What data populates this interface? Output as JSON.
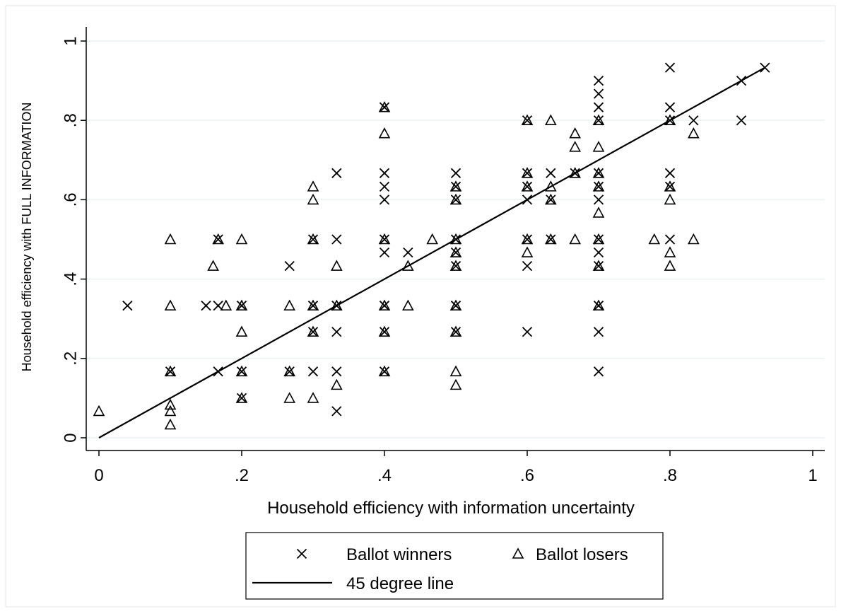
{
  "chart_data": {
    "type": "scatter",
    "xlabel": "Household efficiency with information uncertainty",
    "ylabel": "Household efficiency with FULL INFORMATION",
    "xlim": [
      0,
      1
    ],
    "ylim": [
      0,
      1
    ],
    "x_ticks": [
      0,
      0.2,
      0.4,
      0.6,
      0.8,
      1
    ],
    "x_tick_labels": [
      "0",
      ".2",
      ".4",
      ".6",
      ".8",
      "1"
    ],
    "y_ticks": [
      0,
      0.2,
      0.4,
      0.6,
      0.8,
      1
    ],
    "y_tick_labels": [
      "0",
      ".2",
      ".4",
      ".6",
      ".8",
      "1"
    ],
    "grid": "horizontal",
    "legend_position": "bottom",
    "series": [
      {
        "name": "Ballot winners",
        "marker": "x",
        "points": [
          [
            0.04,
            0.333
          ],
          [
            0.1,
            0.167
          ],
          [
            0.15,
            0.333
          ],
          [
            0.167,
            0.333
          ],
          [
            0.167,
            0.5
          ],
          [
            0.167,
            0.167
          ],
          [
            0.2,
            0.333
          ],
          [
            0.2,
            0.167
          ],
          [
            0.2,
            0.1
          ],
          [
            0.267,
            0.433
          ],
          [
            0.267,
            0.167
          ],
          [
            0.3,
            0.5
          ],
          [
            0.3,
            0.333
          ],
          [
            0.3,
            0.267
          ],
          [
            0.3,
            0.167
          ],
          [
            0.333,
            0.667
          ],
          [
            0.333,
            0.5
          ],
          [
            0.333,
            0.333
          ],
          [
            0.333,
            0.267
          ],
          [
            0.333,
            0.167
          ],
          [
            0.333,
            0.067
          ],
          [
            0.4,
            0.833
          ],
          [
            0.4,
            0.667
          ],
          [
            0.4,
            0.633
          ],
          [
            0.4,
            0.6
          ],
          [
            0.4,
            0.5
          ],
          [
            0.4,
            0.467
          ],
          [
            0.4,
            0.333
          ],
          [
            0.4,
            0.267
          ],
          [
            0.4,
            0.167
          ],
          [
            0.433,
            0.467
          ],
          [
            0.5,
            0.667
          ],
          [
            0.5,
            0.633
          ],
          [
            0.5,
            0.6
          ],
          [
            0.5,
            0.5
          ],
          [
            0.5,
            0.467
          ],
          [
            0.5,
            0.433
          ],
          [
            0.5,
            0.333
          ],
          [
            0.5,
            0.267
          ],
          [
            0.6,
            0.8
          ],
          [
            0.6,
            0.667
          ],
          [
            0.6,
            0.633
          ],
          [
            0.6,
            0.6
          ],
          [
            0.6,
            0.5
          ],
          [
            0.6,
            0.433
          ],
          [
            0.6,
            0.267
          ],
          [
            0.633,
            0.667
          ],
          [
            0.633,
            0.6
          ],
          [
            0.633,
            0.5
          ],
          [
            0.667,
            0.667
          ],
          [
            0.7,
            0.9
          ],
          [
            0.7,
            0.867
          ],
          [
            0.7,
            0.833
          ],
          [
            0.7,
            0.8
          ],
          [
            0.7,
            0.667
          ],
          [
            0.7,
            0.633
          ],
          [
            0.7,
            0.6
          ],
          [
            0.7,
            0.5
          ],
          [
            0.7,
            0.467
          ],
          [
            0.7,
            0.433
          ],
          [
            0.7,
            0.333
          ],
          [
            0.7,
            0.267
          ],
          [
            0.7,
            0.167
          ],
          [
            0.8,
            0.933
          ],
          [
            0.8,
            0.833
          ],
          [
            0.8,
            0.8
          ],
          [
            0.8,
            0.667
          ],
          [
            0.8,
            0.633
          ],
          [
            0.8,
            0.5
          ],
          [
            0.833,
            0.8
          ],
          [
            0.9,
            0.9
          ],
          [
            0.9,
            0.8
          ],
          [
            0.933,
            0.933
          ]
        ]
      },
      {
        "name": "Ballot losers",
        "marker": "triangle",
        "points": [
          [
            0,
            0.067
          ],
          [
            0.1,
            0.5
          ],
          [
            0.1,
            0.333
          ],
          [
            0.1,
            0.167
          ],
          [
            0.1,
            0.083
          ],
          [
            0.1,
            0.067
          ],
          [
            0.1,
            0.033
          ],
          [
            0.16,
            0.433
          ],
          [
            0.167,
            0.5
          ],
          [
            0.178,
            0.333
          ],
          [
            0.2,
            0.5
          ],
          [
            0.2,
            0.333
          ],
          [
            0.2,
            0.267
          ],
          [
            0.2,
            0.167
          ],
          [
            0.2,
            0.1
          ],
          [
            0.267,
            0.333
          ],
          [
            0.267,
            0.167
          ],
          [
            0.267,
            0.1
          ],
          [
            0.3,
            0.633
          ],
          [
            0.3,
            0.6
          ],
          [
            0.3,
            0.5
          ],
          [
            0.3,
            0.333
          ],
          [
            0.3,
            0.267
          ],
          [
            0.3,
            0.1
          ],
          [
            0.333,
            0.433
          ],
          [
            0.333,
            0.333
          ],
          [
            0.333,
            0.133
          ],
          [
            0.4,
            0.833
          ],
          [
            0.4,
            0.767
          ],
          [
            0.4,
            0.5
          ],
          [
            0.4,
            0.333
          ],
          [
            0.4,
            0.267
          ],
          [
            0.4,
            0.167
          ],
          [
            0.433,
            0.333
          ],
          [
            0.433,
            0.433
          ],
          [
            0.467,
            0.5
          ],
          [
            0.5,
            0.633
          ],
          [
            0.5,
            0.6
          ],
          [
            0.5,
            0.5
          ],
          [
            0.5,
            0.467
          ],
          [
            0.5,
            0.433
          ],
          [
            0.5,
            0.333
          ],
          [
            0.5,
            0.267
          ],
          [
            0.5,
            0.167
          ],
          [
            0.5,
            0.133
          ],
          [
            0.6,
            0.8
          ],
          [
            0.6,
            0.667
          ],
          [
            0.6,
            0.633
          ],
          [
            0.6,
            0.5
          ],
          [
            0.6,
            0.467
          ],
          [
            0.633,
            0.8
          ],
          [
            0.633,
            0.633
          ],
          [
            0.633,
            0.6
          ],
          [
            0.633,
            0.5
          ],
          [
            0.667,
            0.767
          ],
          [
            0.667,
            0.733
          ],
          [
            0.667,
            0.667
          ],
          [
            0.667,
            0.5
          ],
          [
            0.7,
            0.8
          ],
          [
            0.7,
            0.733
          ],
          [
            0.7,
            0.667
          ],
          [
            0.7,
            0.633
          ],
          [
            0.7,
            0.567
          ],
          [
            0.7,
            0.5
          ],
          [
            0.7,
            0.433
          ],
          [
            0.7,
            0.333
          ],
          [
            0.778,
            0.5
          ],
          [
            0.8,
            0.8
          ],
          [
            0.8,
            0.633
          ],
          [
            0.8,
            0.6
          ],
          [
            0.8,
            0.467
          ],
          [
            0.8,
            0.433
          ],
          [
            0.833,
            0.767
          ],
          [
            0.833,
            0.5
          ]
        ]
      },
      {
        "name": "45 degree line",
        "marker": "line",
        "points": [
          [
            0,
            0
          ],
          [
            0.933,
            0.933
          ]
        ]
      }
    ]
  }
}
